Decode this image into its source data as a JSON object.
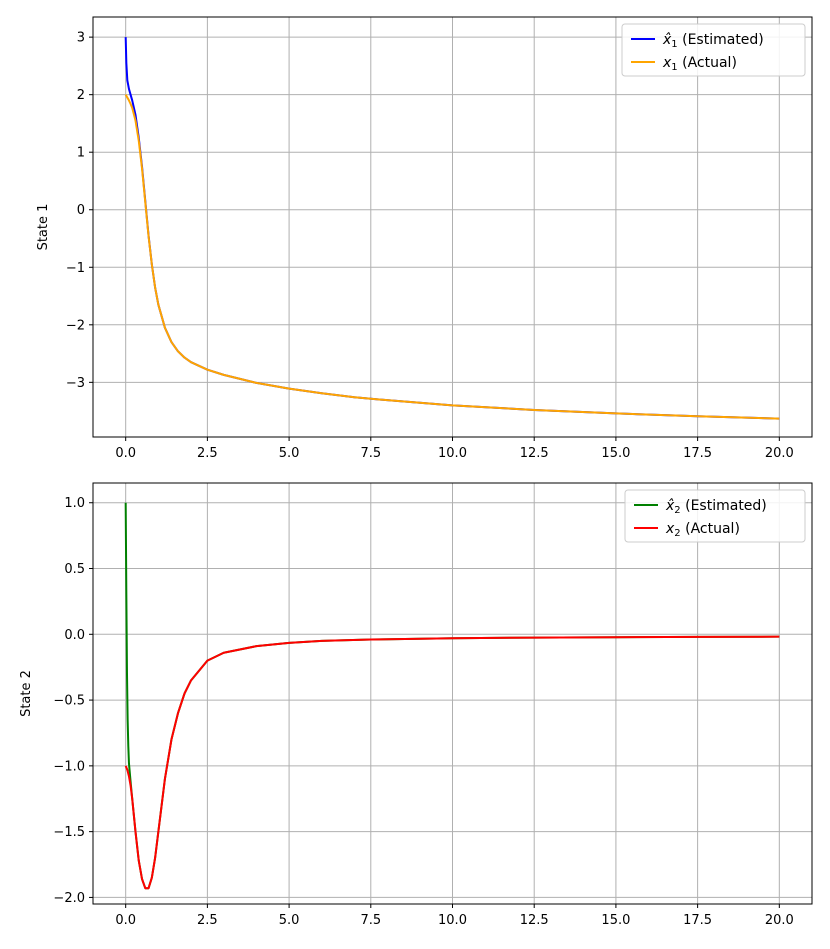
{
  "chart_data": [
    {
      "type": "line",
      "ylabel": "State 1",
      "xlabel": "",
      "xlim": [
        -1.0,
        21.0
      ],
      "ylim": [
        -3.95,
        3.35
      ],
      "xticks": [
        0.0,
        2.5,
        5.0,
        7.5,
        10.0,
        12.5,
        15.0,
        17.5,
        20.0
      ],
      "xtick_labels": [
        "0.0",
        "2.5",
        "5.0",
        "7.5",
        "10.0",
        "12.5",
        "15.0",
        "17.5",
        "20.0"
      ],
      "yticks": [
        3,
        2,
        1,
        0,
        -1,
        -2,
        -3
      ],
      "ytick_labels": [
        "3",
        "2",
        "1",
        "0",
        "−1",
        "−2",
        "−3"
      ],
      "grid": true,
      "legend_position": "top-right",
      "series": [
        {
          "name": "x̂1 (Estimated)",
          "legend_symbol": "x̂",
          "legend_sub": "1",
          "legend_rest": " (Estimated)",
          "color": "#0000ff",
          "x": [
            0.0,
            0.02,
            0.05,
            0.1,
            0.15,
            0.2,
            0.3,
            0.4,
            0.5,
            0.6,
            0.7,
            0.8,
            0.9,
            1.0,
            1.2,
            1.4,
            1.6,
            1.8,
            2.0,
            2.5,
            3.0,
            4.0,
            5.0,
            6.0,
            7.0,
            8.0,
            10.0,
            12.5,
            15.0,
            17.5,
            20.0
          ],
          "y": [
            3.0,
            2.55,
            2.25,
            2.1,
            2.0,
            1.9,
            1.65,
            1.25,
            0.75,
            0.15,
            -0.45,
            -0.95,
            -1.35,
            -1.65,
            -2.05,
            -2.3,
            -2.46,
            -2.57,
            -2.65,
            -2.78,
            -2.87,
            -3.01,
            -3.11,
            -3.19,
            -3.26,
            -3.31,
            -3.4,
            -3.48,
            -3.54,
            -3.59,
            -3.63
          ]
        },
        {
          "name": "x1 (Actual)",
          "legend_symbol": "x",
          "legend_sub": "1",
          "legend_rest": " (Actual)",
          "color": "#ffa500",
          "x": [
            0.0,
            0.05,
            0.1,
            0.15,
            0.2,
            0.3,
            0.4,
            0.5,
            0.6,
            0.7,
            0.8,
            0.9,
            1.0,
            1.2,
            1.4,
            1.6,
            1.8,
            2.0,
            2.5,
            3.0,
            4.0,
            5.0,
            6.0,
            7.0,
            8.0,
            10.0,
            12.5,
            15.0,
            17.5,
            20.0
          ],
          "y": [
            2.0,
            1.95,
            1.9,
            1.84,
            1.77,
            1.55,
            1.2,
            0.72,
            0.13,
            -0.46,
            -0.95,
            -1.35,
            -1.65,
            -2.05,
            -2.3,
            -2.46,
            -2.57,
            -2.65,
            -2.78,
            -2.87,
            -3.01,
            -3.11,
            -3.19,
            -3.26,
            -3.31,
            -3.4,
            -3.48,
            -3.54,
            -3.59,
            -3.63
          ]
        }
      ]
    },
    {
      "type": "line",
      "ylabel": "State 2",
      "xlabel": "",
      "xlim": [
        -1.0,
        21.0
      ],
      "ylim": [
        -2.05,
        1.15
      ],
      "xticks": [
        0.0,
        2.5,
        5.0,
        7.5,
        10.0,
        12.5,
        15.0,
        17.5,
        20.0
      ],
      "xtick_labels": [
        "0.0",
        "2.5",
        "5.0",
        "7.5",
        "10.0",
        "12.5",
        "15.0",
        "17.5",
        "20.0"
      ],
      "yticks": [
        1.0,
        0.5,
        0.0,
        -0.5,
        -1.0,
        -1.5,
        -2.0
      ],
      "ytick_labels": [
        "1.0",
        "0.5",
        "0.0",
        "−0.5",
        "−1.0",
        "−1.5",
        "−2.0"
      ],
      "grid": true,
      "legend_position": "top-right",
      "series": [
        {
          "name": "x̂2 (Estimated)",
          "legend_symbol": "x̂",
          "legend_sub": "2",
          "legend_rest": " (Estimated)",
          "color": "#008000",
          "x": [
            0.0,
            0.02,
            0.04,
            0.06,
            0.08,
            0.1,
            0.15,
            0.2,
            0.3,
            0.4,
            0.5,
            0.6,
            0.7,
            0.8,
            0.9,
            1.0,
            1.2,
            1.4,
            1.6,
            1.8,
            2.0,
            2.5,
            3.0,
            4.0,
            5.0,
            6.0,
            7.5,
            10.0,
            12.5,
            15.0,
            17.5,
            20.0
          ],
          "y": [
            1.0,
            0.3,
            -0.3,
            -0.65,
            -0.85,
            -0.98,
            -1.12,
            -1.25,
            -1.5,
            -1.72,
            -1.86,
            -1.93,
            -1.93,
            -1.85,
            -1.7,
            -1.5,
            -1.1,
            -0.8,
            -0.6,
            -0.45,
            -0.35,
            -0.2,
            -0.14,
            -0.09,
            -0.065,
            -0.05,
            -0.04,
            -0.03,
            -0.025,
            -0.022,
            -0.02,
            -0.018
          ]
        },
        {
          "name": "x2 (Actual)",
          "legend_symbol": "x",
          "legend_sub": "2",
          "legend_rest": " (Actual)",
          "color": "#ff0000",
          "x": [
            0.0,
            0.05,
            0.1,
            0.15,
            0.2,
            0.3,
            0.4,
            0.5,
            0.6,
            0.7,
            0.8,
            0.9,
            1.0,
            1.2,
            1.4,
            1.6,
            1.8,
            2.0,
            2.5,
            3.0,
            4.0,
            5.0,
            6.0,
            7.5,
            10.0,
            12.5,
            15.0,
            17.5,
            20.0
          ],
          "y": [
            -1.0,
            -1.03,
            -1.08,
            -1.15,
            -1.25,
            -1.5,
            -1.72,
            -1.86,
            -1.93,
            -1.93,
            -1.85,
            -1.7,
            -1.5,
            -1.1,
            -0.8,
            -0.6,
            -0.45,
            -0.35,
            -0.2,
            -0.14,
            -0.09,
            -0.065,
            -0.05,
            -0.04,
            -0.03,
            -0.025,
            -0.022,
            -0.02,
            -0.018
          ]
        }
      ]
    }
  ]
}
